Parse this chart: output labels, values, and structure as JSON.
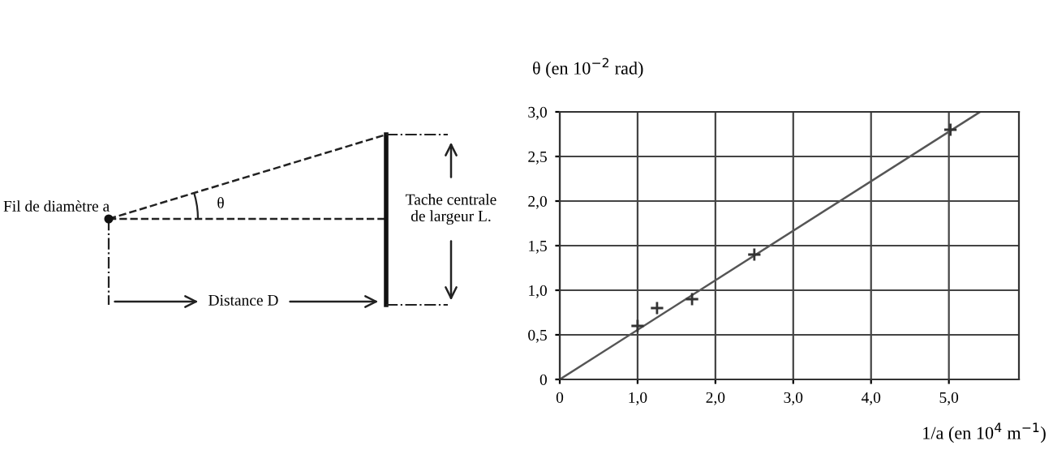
{
  "chart_data": {
    "type": "scatter",
    "ylabel": "θ (en 10$^{−2}$ rad)",
    "xlabel": "1/a (en 10$^{4}$ m$^{−1}$)",
    "series": [
      {
        "color": "#333333",
        "marker": "cross",
        "x": [
          1.0,
          1.25,
          1.7,
          2.5,
          5.02
        ],
        "values": [
          0.6,
          0.8,
          0.9,
          1.4,
          2.8
        ]
      },
      {
        "type": "line",
        "color": "#555555",
        "marker": "none",
        "line_style": "solid",
        "x": [
          0,
          5.4
        ],
        "values": [
          0,
          3.0
        ]
      }
    ],
    "xlim": [
      0,
      5.9
    ],
    "ylim": [
      0,
      3.0
    ],
    "xticks": [
      0,
      {
        "value": 1,
        "label": "1,0"
      },
      {
        "value": 2,
        "label": "2,0"
      },
      {
        "value": 3,
        "label": "3,0"
      },
      {
        "value": 4,
        "label": "4,0"
      },
      {
        "value": 5,
        "label": "5,0"
      }
    ],
    "yticks": [
      0,
      {
        "value": 0.5,
        "label": "0,5"
      },
      {
        "value": 1,
        "label": "1,0"
      },
      {
        "value": 1.5,
        "label": "1,5"
      },
      {
        "value": 2,
        "label": "2,0"
      },
      {
        "value": 2.5,
        "label": "2,5"
      },
      {
        "value": 3,
        "label": "3,0"
      }
    ],
    "grid": true,
    "annotations": [
      "Fil de diamètre a",
      "θ",
      "Tache centrale\nde largeur L.",
      "Distance D"
    ]
  }
}
